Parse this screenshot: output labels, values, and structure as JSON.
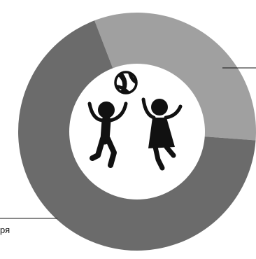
{
  "chart_data": {
    "type": "pie",
    "variant": "donut",
    "slices": [
      {
        "value": 32,
        "color": "#a0a0a0",
        "label": ""
      },
      {
        "value": 68,
        "color": "#6b6b6b",
        "label": "ря"
      }
    ],
    "legend": "none",
    "center_icon": "kids-playing-ball-icon"
  }
}
